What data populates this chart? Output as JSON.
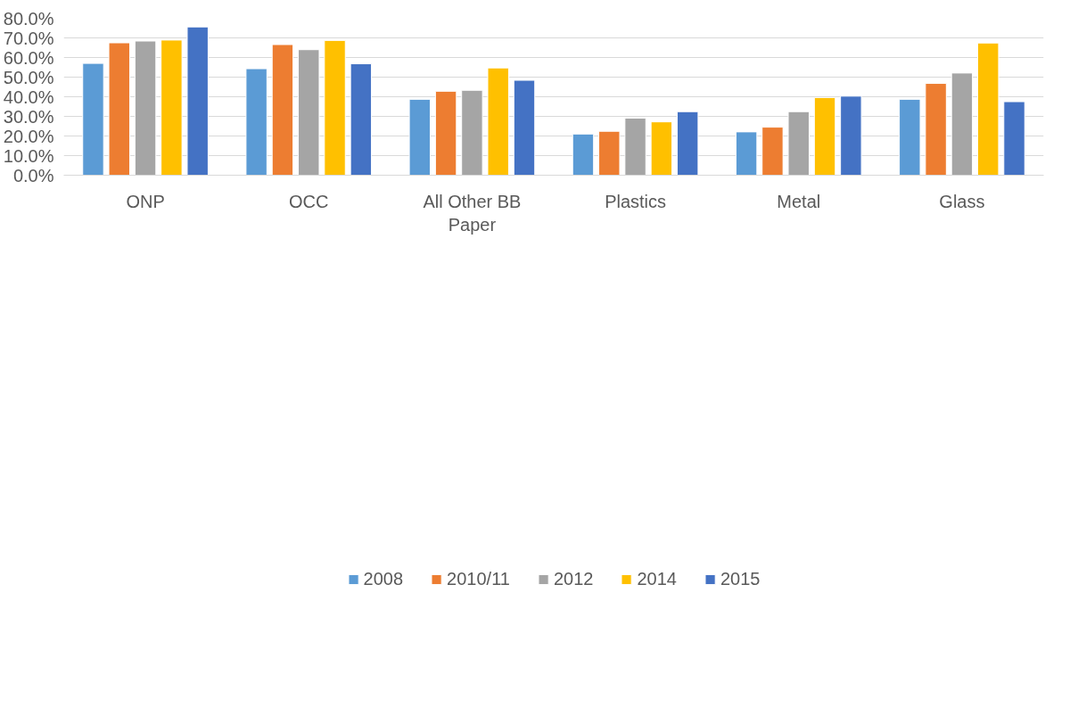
{
  "chart_data": {
    "type": "bar",
    "categories": [
      "ONP",
      "OCC",
      "All Other BB Paper",
      "Plastics",
      "Metal",
      "Glass"
    ],
    "series": [
      {
        "name": "2008",
        "color": "#5b9bd5",
        "values": [
          57.0,
          54.3,
          38.7,
          21.0,
          22.1,
          38.7
        ]
      },
      {
        "name": "2010/11",
        "color": "#ed7d31",
        "values": [
          67.5,
          66.6,
          42.8,
          22.4,
          24.5,
          46.8
        ]
      },
      {
        "name": "2012",
        "color": "#a5a5a5",
        "values": [
          68.4,
          64.0,
          43.3,
          29.1,
          32.4,
          52.1
        ]
      },
      {
        "name": "2014",
        "color": "#ffc000",
        "values": [
          68.9,
          68.7,
          54.7,
          27.2,
          39.6,
          67.4
        ]
      },
      {
        "name": "2015",
        "color": "#4472c4",
        "values": [
          75.6,
          56.8,
          48.4,
          32.4,
          40.3,
          37.5
        ]
      }
    ],
    "ylim": [
      0,
      80
    ],
    "yticks": [
      {
        "value": 0,
        "label": "0.0%"
      },
      {
        "value": 10,
        "label": "10.0%"
      },
      {
        "value": 20,
        "label": "20.0%"
      },
      {
        "value": 30,
        "label": "30.0%"
      },
      {
        "value": 40,
        "label": "40.0%"
      },
      {
        "value": 50,
        "label": "50.0%"
      },
      {
        "value": 60,
        "label": "60.0%"
      },
      {
        "value": 70,
        "label": "70.0%"
      },
      {
        "value": 80,
        "label": "80.0%"
      }
    ],
    "grid": "y",
    "legend": "bottom"
  }
}
